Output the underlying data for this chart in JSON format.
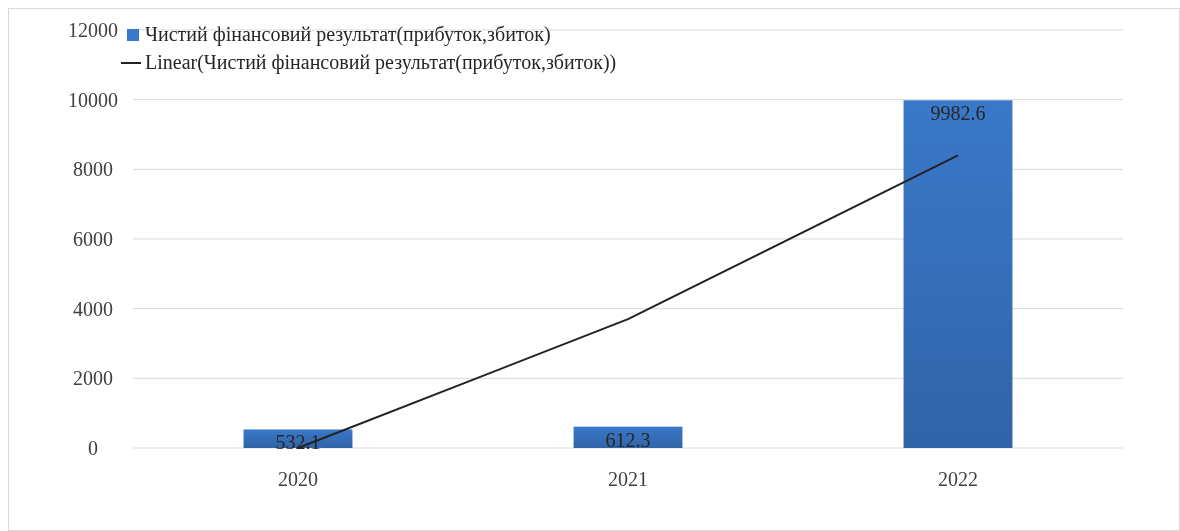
{
  "chart_data": {
    "type": "bar",
    "categories": [
      "2020",
      "2021",
      "2022"
    ],
    "series": [
      {
        "name": "Чистий фінансовий результат(прибуток,збиток)",
        "color": "#3a78c9",
        "values": [
          532.1,
          612.3,
          9982.6
        ],
        "value_labels": [
          "532.1",
          "612.3",
          "9982.6"
        ]
      },
      {
        "name": "Linear(Чистий фінансовий результат(прибуток,збиток))",
        "type": "line",
        "color": "#222222",
        "values": [
          0,
          3700,
          8400
        ]
      }
    ],
    "ylim": [
      0,
      12000
    ],
    "yticks": [
      0,
      2000,
      4000,
      6000,
      8000,
      10000,
      12000
    ],
    "grid": "y",
    "legend": "top left"
  }
}
